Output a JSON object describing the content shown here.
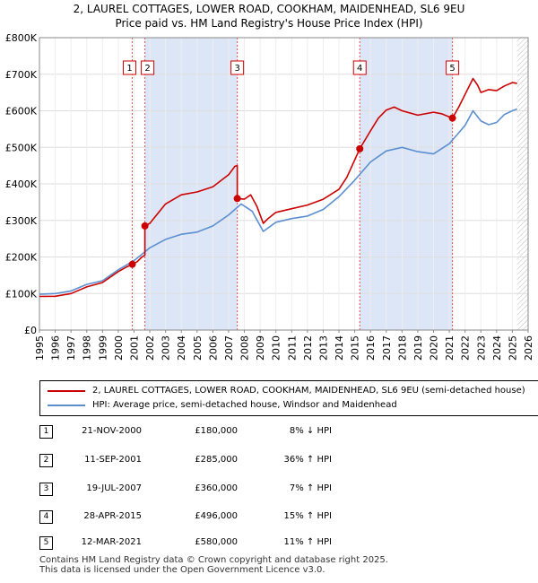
{
  "title_line1": "2, LAUREL COTTAGES, LOWER ROAD, COOKHAM, MAIDENHEAD, SL6 9EU",
  "title_line2": "Price paid vs. HM Land Registry's House Price Index (HPI)",
  "colors": {
    "property": "#cc0000",
    "hpi": "#5b8fd0",
    "shade": "#dde6f6"
  },
  "chart_data": {
    "type": "line",
    "title": "2, LAUREL COTTAGES, LOWER ROAD, COOKHAM, MAIDENHEAD, SL6 9EU",
    "subtitle": "Price paid vs. HM Land Registry's House Price Index (HPI)",
    "xlabel": "",
    "ylabel": "",
    "xlim": [
      1995,
      2026
    ],
    "ylim": [
      0,
      800000
    ],
    "y_ticks": [
      0,
      100000,
      200000,
      300000,
      400000,
      500000,
      600000,
      700000,
      800000
    ],
    "y_tick_labels": [
      "£0",
      "£100K",
      "£200K",
      "£300K",
      "£400K",
      "£500K",
      "£600K",
      "£700K",
      "£800K"
    ],
    "x_ticks": [
      1995,
      1996,
      1997,
      1998,
      1999,
      2000,
      2001,
      2002,
      2003,
      2004,
      2005,
      2006,
      2007,
      2008,
      2009,
      2010,
      2011,
      2012,
      2013,
      2014,
      2015,
      2016,
      2017,
      2018,
      2019,
      2020,
      2021,
      2022,
      2023,
      2024,
      2025,
      2026
    ],
    "x_tick_labels": [
      "1995",
      "1996",
      "1997",
      "1998",
      "1999",
      "2000",
      "2001",
      "2002",
      "2003",
      "2004",
      "2005",
      "2006",
      "2007",
      "2008",
      "2009",
      "2010",
      "2011",
      "2012",
      "2013",
      "2014",
      "2015",
      "2016",
      "2017",
      "2018",
      "2019",
      "2020",
      "2021",
      "2022",
      "2023",
      "2024",
      "2025",
      "2026"
    ],
    "grid": true,
    "shaded_ranges": [
      [
        2001.69,
        2007.55
      ],
      [
        2015.32,
        2021.2
      ]
    ],
    "hatch_from": 2025.3,
    "series": [
      {
        "name": "2, LAUREL COTTAGES, LOWER ROAD, COOKHAM, MAIDENHEAD, SL6 9EU (semi-detached house)",
        "color": "#cc0000",
        "points": [
          [
            1995.0,
            92000
          ],
          [
            1996.0,
            92500
          ],
          [
            1997.0,
            100000
          ],
          [
            1998.0,
            118000
          ],
          [
            1999.0,
            130000
          ],
          [
            2000.0,
            160000
          ],
          [
            2000.5,
            172000
          ],
          [
            2000.89,
            180000
          ],
          [
            2001.2,
            187000
          ],
          [
            2001.5,
            200000
          ],
          [
            2001.69,
            205000
          ],
          [
            2001.69,
            285000
          ],
          [
            2002.0,
            292000
          ],
          [
            2003.0,
            345000
          ],
          [
            2004.0,
            370000
          ],
          [
            2005.0,
            378000
          ],
          [
            2006.0,
            392000
          ],
          [
            2007.0,
            425000
          ],
          [
            2007.4,
            448000
          ],
          [
            2007.55,
            450000
          ],
          [
            2007.55,
            360000
          ],
          [
            2008.0,
            358000
          ],
          [
            2008.4,
            370000
          ],
          [
            2008.8,
            338000
          ],
          [
            2009.2,
            292000
          ],
          [
            2009.5,
            305000
          ],
          [
            2010.0,
            322000
          ],
          [
            2011.0,
            332000
          ],
          [
            2012.0,
            342000
          ],
          [
            2013.0,
            358000
          ],
          [
            2014.0,
            385000
          ],
          [
            2014.5,
            418000
          ],
          [
            2015.32,
            496000
          ],
          [
            2016.0,
            545000
          ],
          [
            2016.5,
            580000
          ],
          [
            2017.0,
            602000
          ],
          [
            2017.5,
            610000
          ],
          [
            2018.0,
            600000
          ],
          [
            2019.0,
            588000
          ],
          [
            2020.0,
            596000
          ],
          [
            2020.5,
            592000
          ],
          [
            2021.2,
            580000
          ],
          [
            2021.6,
            610000
          ],
          [
            2022.0,
            645000
          ],
          [
            2022.5,
            688000
          ],
          [
            2022.8,
            670000
          ],
          [
            2023.0,
            650000
          ],
          [
            2023.5,
            658000
          ],
          [
            2024.0,
            655000
          ],
          [
            2024.5,
            668000
          ],
          [
            2025.0,
            677000
          ],
          [
            2025.3,
            675000
          ]
        ]
      },
      {
        "name": "HPI: Average price, semi-detached house, Windsor and Maidenhead",
        "color": "#5b8fd0",
        "points": [
          [
            1995.0,
            98000
          ],
          [
            1996.0,
            100000
          ],
          [
            1997.0,
            107000
          ],
          [
            1998.0,
            125000
          ],
          [
            1999.0,
            135000
          ],
          [
            2000.0,
            165000
          ],
          [
            2001.0,
            190000
          ],
          [
            2002.0,
            225000
          ],
          [
            2003.0,
            248000
          ],
          [
            2004.0,
            262000
          ],
          [
            2005.0,
            268000
          ],
          [
            2006.0,
            285000
          ],
          [
            2007.0,
            315000
          ],
          [
            2007.8,
            345000
          ],
          [
            2008.5,
            325000
          ],
          [
            2009.2,
            270000
          ],
          [
            2010.0,
            295000
          ],
          [
            2011.0,
            305000
          ],
          [
            2012.0,
            312000
          ],
          [
            2013.0,
            330000
          ],
          [
            2014.0,
            365000
          ],
          [
            2015.0,
            410000
          ],
          [
            2016.0,
            460000
          ],
          [
            2017.0,
            490000
          ],
          [
            2018.0,
            500000
          ],
          [
            2019.0,
            488000
          ],
          [
            2020.0,
            482000
          ],
          [
            2021.0,
            510000
          ],
          [
            2022.0,
            560000
          ],
          [
            2022.5,
            600000
          ],
          [
            2023.0,
            572000
          ],
          [
            2023.5,
            562000
          ],
          [
            2024.0,
            568000
          ],
          [
            2024.5,
            590000
          ],
          [
            2025.0,
            600000
          ],
          [
            2025.3,
            605000
          ]
        ]
      }
    ],
    "sales": [
      {
        "n": "1",
        "x": 2000.89,
        "price": 180000
      },
      {
        "n": "2",
        "x": 2001.69,
        "price": 285000
      },
      {
        "n": "3",
        "x": 2007.55,
        "price": 360000
      },
      {
        "n": "4",
        "x": 2015.32,
        "price": 496000
      },
      {
        "n": "5",
        "x": 2021.2,
        "price": 580000
      }
    ]
  },
  "legend": {
    "property": "2, LAUREL COTTAGES, LOWER ROAD, COOKHAM, MAIDENHEAD, SL6 9EU (semi-detached house)",
    "hpi": "HPI: Average price, semi-detached house, Windsor and Maidenhead"
  },
  "sales_table": [
    {
      "n": "1",
      "date": "21-NOV-2000",
      "price": "£180,000",
      "hpi": "8% ↓ HPI"
    },
    {
      "n": "2",
      "date": "11-SEP-2001",
      "price": "£285,000",
      "hpi": "36% ↑ HPI"
    },
    {
      "n": "3",
      "date": "19-JUL-2007",
      "price": "£360,000",
      "hpi": "7% ↑ HPI"
    },
    {
      "n": "4",
      "date": "28-APR-2015",
      "price": "£496,000",
      "hpi": "15% ↑ HPI"
    },
    {
      "n": "5",
      "date": "12-MAR-2021",
      "price": "£580,000",
      "hpi": "11% ↑ HPI"
    }
  ],
  "footer_line1": "Contains HM Land Registry data © Crown copyright and database right 2025.",
  "footer_line2": "This data is licensed under the Open Government Licence v3.0."
}
